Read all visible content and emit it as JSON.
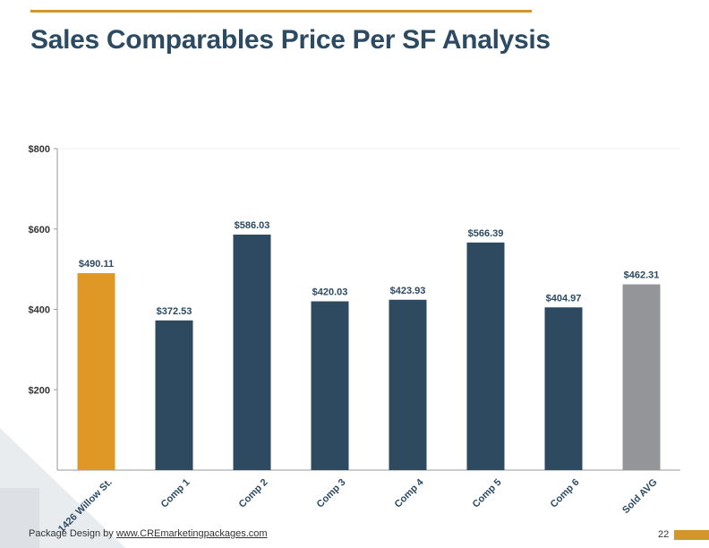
{
  "title": "Sales Comparables Price Per SF Analysis",
  "footer": {
    "credit_prefix": "Package Design by ",
    "credit_link": "www.CREmarketingpackages.com",
    "page_number": "22"
  },
  "colors": {
    "accent": "#d4952a",
    "title": "#2c4a62",
    "subject_bar": "#df9726",
    "comp_bar": "#2d4a61",
    "average_bar": "#939598",
    "axis": "#999999"
  },
  "chart_data": {
    "type": "bar",
    "title": "",
    "xlabel": "",
    "ylabel": "",
    "ylim": [
      0,
      800
    ],
    "grid": false,
    "legend": "none",
    "yticks": [
      {
        "value": 200,
        "label": "$200"
      },
      {
        "value": 400,
        "label": "$400"
      },
      {
        "value": 600,
        "label": "$600"
      },
      {
        "value": 800,
        "label": "$800"
      }
    ],
    "categories": [
      "1426 Willow St.",
      "Comp 1",
      "Comp 2",
      "Comp 3",
      "Comp 4",
      "Comp 5",
      "Comp 6",
      "Sold AVG"
    ],
    "values": [
      490.11,
      372.53,
      586.03,
      420.03,
      423.93,
      566.39,
      404.97,
      462.31
    ],
    "data_labels": [
      "$490.11",
      "$372.53",
      "$586.03",
      "$420.03",
      "$423.93",
      "$566.39",
      "$404.97",
      "$462.31"
    ],
    "bar_colors": [
      "#df9726",
      "#2d4a61",
      "#2d4a61",
      "#2d4a61",
      "#2d4a61",
      "#2d4a61",
      "#2d4a61",
      "#939598"
    ]
  }
}
